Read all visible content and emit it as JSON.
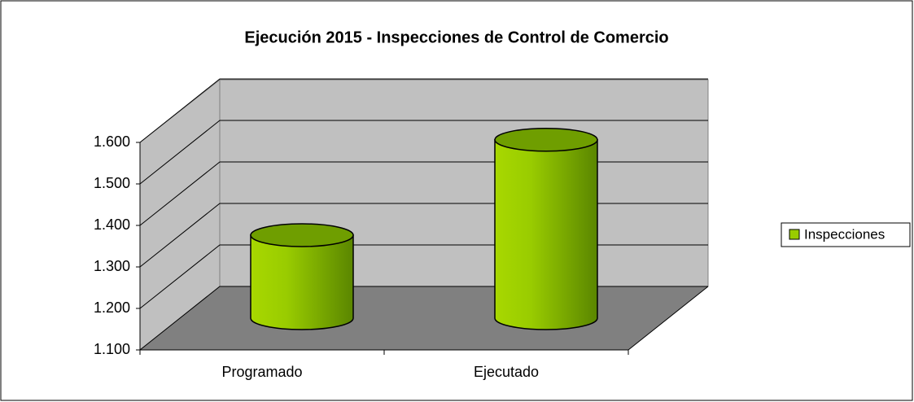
{
  "chart_data": {
    "type": "bar3d",
    "title": "Ejecución 2015 - Inspecciones de Control de Comercio",
    "categories": [
      "Programado",
      "Ejecutado"
    ],
    "series": [
      {
        "name": "Inspecciones",
        "color": "#99cc00",
        "values": [
          1300,
          1530
        ]
      }
    ],
    "ylim": [
      1100,
      1600
    ],
    "yticks": [
      {
        "value": 1100,
        "label": "1.100"
      },
      {
        "value": 1200,
        "label": "1.200"
      },
      {
        "value": 1300,
        "label": "1.300"
      },
      {
        "value": 1400,
        "label": "1.400"
      },
      {
        "value": 1500,
        "label": "1.500"
      },
      {
        "value": 1600,
        "label": "1.600"
      }
    ],
    "grid": true,
    "legend": "right"
  }
}
